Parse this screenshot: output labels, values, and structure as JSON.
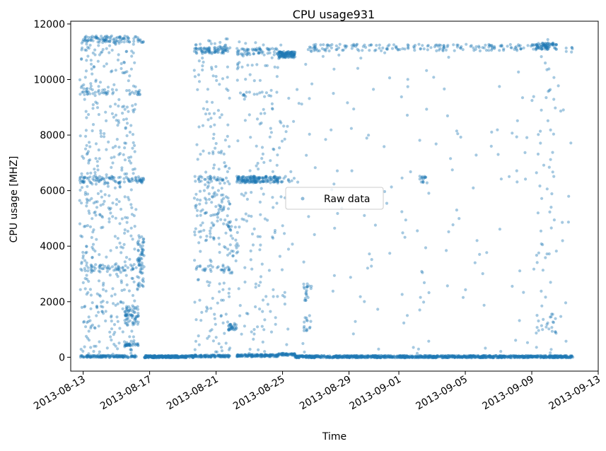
{
  "chart_data": {
    "type": "scatter",
    "title": "CPU usage931",
    "xlabel": "Time",
    "ylabel": "CPU usage [MHZ]",
    "xlim": [
      "2013-08-12T06:00",
      "2013-09-13T00:00"
    ],
    "ylim": [
      -500,
      12100
    ],
    "x_ticks": [
      "2013-08-13",
      "2013-08-17",
      "2013-08-21",
      "2013-08-25",
      "2013-08-29",
      "2013-09-01",
      "2013-09-05",
      "2013-09-09",
      "2013-09-13"
    ],
    "y_ticks": [
      0,
      2000,
      4000,
      6000,
      8000,
      10000,
      12000
    ],
    "grid": false,
    "legend": {
      "position": "center",
      "entries": [
        "Raw data"
      ]
    },
    "marker_color": "#1f77b4",
    "marker_alpha": 0.4,
    "series": [
      {
        "name": "Raw data",
        "segments": [
          {
            "start": "2013-08-12T19:00",
            "end": "2013-08-16T05:00",
            "levels": [
              {
                "y": 11450,
                "count": 80
              },
              {
                "y": 9560,
                "count": 30
              },
              {
                "y": 6400,
                "count": 70
              },
              {
                "y": 3220,
                "count": 45
              },
              {
                "y": 30,
                "count": 150
              },
              {
                "y": "uniform",
                "count": 500
              }
            ]
          },
          {
            "start": "2013-08-15T12:00",
            "end": "2013-08-16T08:00",
            "levels": [
              {
                "y": 1500,
                "count": 60
              },
              {
                "y": 450,
                "count": 30
              }
            ]
          },
          {
            "start": "2013-08-16T06:00",
            "end": "2013-08-16T16:00",
            "levels": [
              {
                "y": 3400,
                "count": 70
              },
              {
                "y": 6400,
                "count": 20
              },
              {
                "y": 9560,
                "count": 8
              },
              {
                "y": 11400,
                "count": 10
              }
            ]
          },
          {
            "start": "2013-08-16T16:00",
            "end": "2013-08-19T16:00",
            "levels": [
              {
                "y": 20,
                "count": 300
              }
            ]
          },
          {
            "start": "2013-08-19T16:00",
            "end": "2013-08-21T20:00",
            "levels": [
              {
                "y": 11050,
                "count": 80
              },
              {
                "y": 6400,
                "count": 30
              },
              {
                "y": 5300,
                "count": 60
              },
              {
                "y": 3200,
                "count": 25
              },
              {
                "y": 40,
                "count": 120
              },
              {
                "y": "uniform",
                "count": 200
              }
            ]
          },
          {
            "start": "2013-08-21T18:00",
            "end": "2013-08-22T06:00",
            "levels": [
              {
                "y": 1100,
                "count": 30
              },
              {
                "y": 4000,
                "count": 25
              }
            ]
          },
          {
            "start": "2013-08-22T06:00",
            "end": "2013-08-24T18:00",
            "levels": [
              {
                "y": 6400,
                "count": 160
              },
              {
                "y": 11000,
                "count": 60
              },
              {
                "y": 9500,
                "count": 15
              },
              {
                "y": 60,
                "count": 150
              },
              {
                "y": "uniform",
                "count": 150
              }
            ]
          },
          {
            "start": "2013-08-24T18:00",
            "end": "2013-08-25T18:00",
            "levels": [
              {
                "y": 10900,
                "count": 120
              },
              {
                "y": 6400,
                "count": 10
              },
              {
                "y": 100,
                "count": 60
              },
              {
                "y": "uniform",
                "count": 30
              }
            ]
          },
          {
            "start": "2013-08-26T06:00",
            "end": "2013-08-26T18:00",
            "levels": [
              {
                "y": 2300,
                "count": 20
              },
              {
                "y": 1300,
                "count": 15
              }
            ]
          },
          {
            "start": "2013-08-25T18:00",
            "end": "2013-09-11T12:00",
            "levels": [
              {
                "y": 20,
                "count": 1200
              },
              {
                "y": "uniform_sparse",
                "count": 180
              }
            ]
          },
          {
            "start": "2013-08-26T12:00",
            "end": "2013-09-09T06:00",
            "levels": [
              {
                "y": 11150,
                "count": 180
              }
            ]
          },
          {
            "start": "2013-09-02T06:00",
            "end": "2013-09-02T18:00",
            "levels": [
              {
                "y": 6400,
                "count": 15
              }
            ]
          },
          {
            "start": "2013-09-09T06:00",
            "end": "2013-09-10T12:00",
            "levels": [
              {
                "y": 11200,
                "count": 80
              },
              {
                "y": 1200,
                "count": 20
              },
              {
                "y": "uniform",
                "count": 40
              }
            ]
          },
          {
            "start": "2013-09-11T00:00",
            "end": "2013-09-11T12:00",
            "levels": [
              {
                "y": 11100,
                "count": 6
              }
            ]
          }
        ]
      }
    ]
  }
}
